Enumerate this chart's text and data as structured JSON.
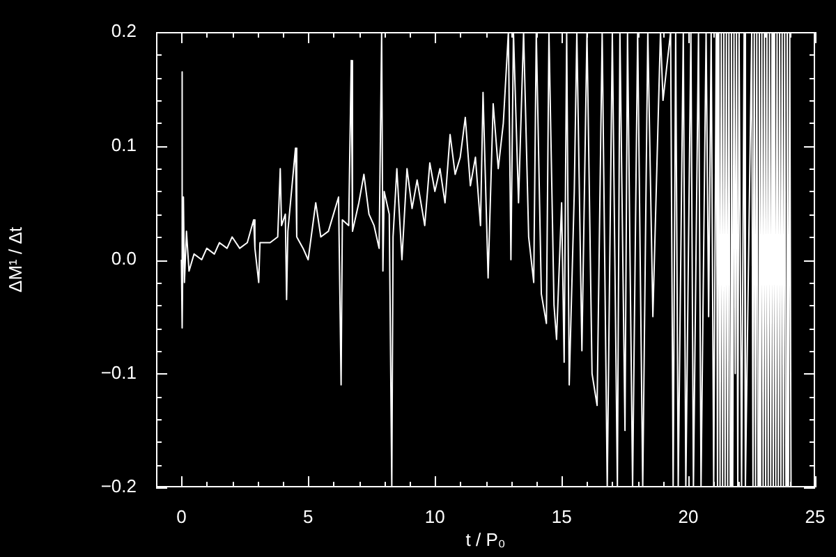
{
  "chart_data": {
    "type": "line",
    "xlabel": "t / P₀",
    "ylabel": "ΔM¹ / Δt",
    "xlim": [
      -1,
      25
    ],
    "xticks": [
      0,
      {
        "value": 1,
        "label": null
      },
      {
        "value": 2,
        "label": null
      },
      {
        "value": 3,
        "label": null
      },
      {
        "value": 4,
        "label": null
      },
      5,
      {
        "value": 6,
        "label": null
      },
      {
        "value": 7,
        "label": null
      },
      {
        "value": 8,
        "label": null
      },
      {
        "value": 9,
        "label": null
      },
      10,
      {
        "value": 11,
        "label": null
      },
      {
        "value": 12,
        "label": null
      },
      {
        "value": 13,
        "label": null
      },
      {
        "value": 14,
        "label": null
      },
      15,
      {
        "value": 16,
        "label": null
      },
      {
        "value": 17,
        "label": null
      },
      {
        "value": 18,
        "label": null
      },
      {
        "value": 19,
        "label": null
      },
      20,
      {
        "value": 21,
        "label": null
      },
      {
        "value": 22,
        "label": null
      },
      {
        "value": 23,
        "label": null
      },
      {
        "value": 24,
        "label": null
      },
      25
    ],
    "ylim": [
      -0.2,
      0.2
    ],
    "yticks": [
      {
        "value": -0.2,
        "label": "−0.2"
      },
      {
        "value": -0.18,
        "label": null
      },
      {
        "value": -0.16,
        "label": null
      },
      {
        "value": -0.14,
        "label": null
      },
      {
        "value": -0.12,
        "label": null
      },
      {
        "value": -0.1,
        "label": "−0.1"
      },
      {
        "value": -0.08,
        "label": null
      },
      {
        "value": -0.06,
        "label": null
      },
      {
        "value": -0.04,
        "label": null
      },
      {
        "value": -0.02,
        "label": null
      },
      {
        "value": 0,
        "label": "0.0"
      },
      {
        "value": 0.02,
        "label": null
      },
      {
        "value": 0.04,
        "label": null
      },
      {
        "value": 0.06,
        "label": null
      },
      {
        "value": 0.08,
        "label": null
      },
      0.1,
      {
        "value": 0.12,
        "label": null
      },
      {
        "value": 0.14,
        "label": null
      },
      {
        "value": 0.16,
        "label": null
      },
      {
        "value": 0.18,
        "label": null
      },
      0.2
    ],
    "series": [
      {
        "color": "#ffffff",
        "x": [
          0,
          0.02,
          0.04,
          0.08,
          0.12,
          0.2,
          0.3,
          0.5,
          0.8,
          1.0,
          1.3,
          1.5,
          1.8,
          2.0,
          2.3,
          2.6,
          2.85,
          2.9,
          3.05,
          3.1,
          3.5,
          3.8,
          3.9,
          3.95,
          4.1,
          4.15,
          4.2,
          4.5,
          4.55,
          4.8,
          5.0,
          5.3,
          5.5,
          5.8,
          6.0,
          6.2,
          6.3,
          6.35,
          6.6,
          6.7,
          6.75,
          7.0,
          7.2,
          7.4,
          7.6,
          7.8,
          7.9,
          7.95,
          8.0,
          8.2,
          8.3,
          8.35,
          8.5,
          8.7,
          8.9,
          9.1,
          9.3,
          9.6,
          9.8,
          10.0,
          10.2,
          10.4,
          10.6,
          10.8,
          11.0,
          11.2,
          11.4,
          11.6,
          11.8,
          11.9,
          12.1,
          12.3,
          12.5,
          12.7,
          12.9,
          13.0,
          13.1,
          13.3,
          13.5,
          13.7,
          13.9,
          14.0,
          14.2,
          14.4,
          14.5,
          14.7,
          14.8,
          15.0,
          15.1,
          15.2,
          15.3,
          15.5,
          15.6,
          15.8,
          16.0,
          16.2,
          16.4,
          16.6,
          16.8,
          17.0,
          17.2,
          17.3,
          17.5,
          17.6,
          17.8,
          18.0,
          18.2,
          18.4,
          18.6,
          18.9,
          19.0,
          19.3,
          19.4,
          19.5,
          19.6,
          19.8,
          19.9,
          20.1,
          20.2,
          20.4,
          20.5,
          20.7,
          20.8,
          20.9,
          21.0,
          21.1,
          21.15,
          21.2,
          21.25,
          21.3,
          21.35,
          21.4,
          21.45,
          21.5,
          21.55,
          21.6,
          21.65,
          21.7,
          21.75,
          21.8,
          21.85,
          21.9,
          21.95,
          22.0,
          22.1,
          22.2,
          22.25,
          22.5,
          22.55,
          22.6,
          22.65,
          22.7,
          22.75,
          22.8,
          22.85,
          22.9,
          22.95,
          23.0,
          23.05,
          23.1,
          23.15,
          23.2,
          23.25,
          23.3,
          23.35,
          23.4,
          23.45,
          23.5,
          23.55,
          23.6,
          23.65,
          23.7,
          23.75,
          23.8,
          23.85,
          23.9,
          23.95,
          24.0,
          24.05
        ],
        "values": [
          0,
          0.165,
          -0.06,
          0.055,
          -0.02,
          0.025,
          -0.01,
          0.005,
          0,
          0.01,
          0.005,
          0.015,
          0.01,
          0.02,
          0.01,
          0.015,
          0.035,
          0.01,
          -0.02,
          0.015,
          0.015,
          0.02,
          0.08,
          0.03,
          0.04,
          -0.035,
          0.025,
          0.098,
          0.02,
          0.01,
          0,
          0.05,
          0.02,
          0.025,
          0.04,
          0.055,
          -0.11,
          0.035,
          0.03,
          0.175,
          0.025,
          0.05,
          0.075,
          0.04,
          0.03,
          0.01,
          0.2,
          -0.01,
          0.06,
          0.04,
          -0.2,
          0.02,
          0.08,
          0,
          0.08,
          0.045,
          0.07,
          0.03,
          0.085,
          0.06,
          0.08,
          0.05,
          0.11,
          0.075,
          0.09,
          0.125,
          0.065,
          0.09,
          0.03,
          0.147,
          -0.016,
          0.137,
          0.08,
          0.12,
          0.2,
          0,
          0.2,
          0.05,
          0.2,
          0.02,
          -0.02,
          0.2,
          -0.03,
          -0.056,
          0.2,
          -0.04,
          -0.07,
          0.05,
          -0.09,
          0.2,
          -0.11,
          0.06,
          0.2,
          -0.08,
          0.2,
          -0.1,
          -0.128,
          0.2,
          -0.2,
          0.2,
          -0.2,
          0.2,
          -0.15,
          0.2,
          -0.2,
          0.2,
          -0.2,
          0.2,
          -0.05,
          0.2,
          0.14,
          0.2,
          -0.2,
          0.2,
          -0.2,
          0.2,
          -0.2,
          0.2,
          -0.2,
          0.2,
          -0.2,
          0.2,
          -0.05,
          0.2,
          -0.2,
          0.2,
          -0.2,
          0.2,
          -0.2,
          0.2,
          -0.2,
          0.2,
          -0.2,
          0.2,
          -0.2,
          0.2,
          -0.2,
          0.2,
          -0.2,
          0.2,
          -0.1,
          0.2,
          -0.2,
          0.2,
          -0.2,
          0.2,
          -0.2,
          0.2,
          -0.2,
          0.2,
          -0.2,
          0.2,
          -0.2,
          0.2,
          -0.2,
          0.2,
          -0.2,
          0.2,
          -0.2,
          0.2,
          -0.2,
          0.2,
          -0.2,
          0.2,
          -0.2,
          0.2,
          -0.2,
          0.2,
          -0.2,
          0.2,
          -0.2,
          0.2,
          -0.2,
          0.2,
          -0.2,
          0.2,
          -0.2,
          0.2,
          -0.2
        ]
      }
    ]
  }
}
